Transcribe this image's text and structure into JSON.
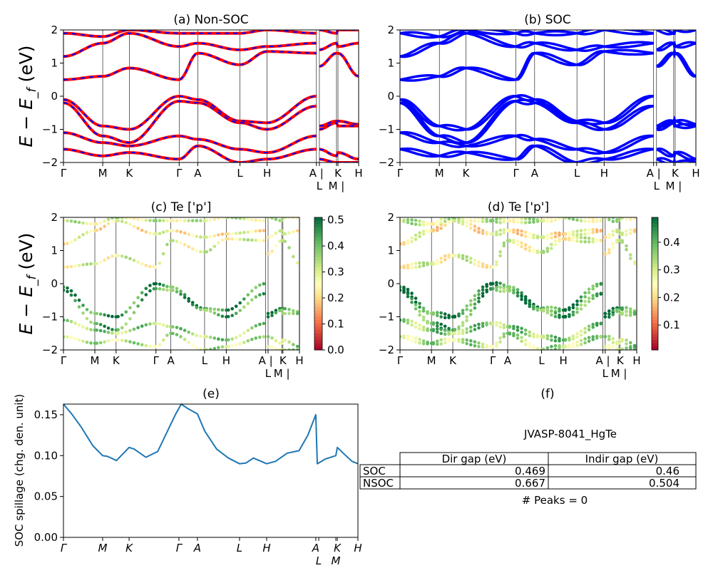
{
  "chart_data": [
    {
      "panel": "a",
      "type": "line",
      "title": "(a) Non-SOC",
      "ylabel": "E − E_f (eV)",
      "ylim": [
        -2,
        2
      ],
      "yticks": [
        "−2",
        "−1",
        "0",
        "1",
        "2"
      ],
      "kpath_labels": [
        "Γ",
        "M",
        "K",
        "Γ",
        "A",
        "L",
        "H",
        "A |",
        "L",
        "M |",
        "K",
        "H"
      ],
      "series_colors": {
        "line": "#ff0000",
        "dash": "#0000ff"
      },
      "bands_at_kpoints": [
        [
          -0.1,
          -0.9,
          -1.0,
          0.0,
          -0.1,
          -0.75,
          -0.8,
          0.0,
          -0.9,
          -0.75,
          -0.75,
          -0.85
        ],
        [
          -0.2,
          -1.2,
          -1.4,
          -0.15,
          -0.2,
          -0.8,
          -1.0,
          -0.3,
          -1.0,
          -0.8,
          -0.9,
          -0.9
        ],
        [
          -1.1,
          -1.4,
          -1.5,
          -1.2,
          -1.3,
          -1.6,
          -1.7,
          -1.2,
          -1.6,
          -1.8,
          -1.7,
          -1.9
        ],
        [
          -1.6,
          -1.8,
          -1.7,
          -1.9,
          -1.5,
          -2.0,
          -1.9,
          -1.6,
          -1.9,
          -2.0,
          -2.0,
          -2.0
        ],
        [
          0.5,
          0.6,
          0.85,
          0.5,
          1.3,
          0.95,
          1.35,
          1.3,
          0.9,
          1.3,
          1.3,
          0.6
        ],
        [
          1.2,
          1.6,
          1.9,
          1.5,
          1.6,
          1.4,
          1.5,
          1.6,
          1.4,
          1.6,
          1.5,
          1.6
        ],
        [
          1.9,
          1.8,
          2.0,
          1.9,
          1.9,
          1.9,
          2.0,
          1.9,
          2.0,
          1.9,
          2.0,
          2.0
        ]
      ]
    },
    {
      "panel": "b",
      "type": "line",
      "title": "(b) SOC",
      "ylim": [
        -2,
        2
      ],
      "yticks": [
        "−2",
        "−1",
        "0",
        "1",
        "2"
      ],
      "kpath_labels": [
        "Γ",
        "M",
        "K",
        "Γ",
        "A",
        "L",
        "H",
        "A |",
        "L",
        "M |",
        "K",
        "H"
      ],
      "series_colors": {
        "line": "#0000ff"
      }
    },
    {
      "panel": "c",
      "type": "scatter",
      "title": "(c)  Te ['p']",
      "ylabel": "E − E_f (eV)",
      "ylim": [
        -2,
        2
      ],
      "yticks": [
        "−2",
        "−1",
        "0",
        "1",
        "2"
      ],
      "kpath_labels": [
        "Γ",
        "M",
        "K",
        "Γ",
        "A",
        "L",
        "H",
        "A |",
        "L",
        "M |",
        "K",
        "H"
      ],
      "colormap": "RdYlGn",
      "colorbar": {
        "range": [
          0.0,
          0.51
        ],
        "ticks": [
          "0.0",
          "0.1",
          "0.2",
          "0.3",
          "0.4",
          "0.5"
        ],
        "values": [
          0,
          0.1,
          0.2,
          0.3,
          0.4,
          0.5
        ]
      },
      "band_weights": [
        0.45,
        0.42,
        0.36,
        0.33,
        0.28,
        0.25,
        0.3
      ]
    },
    {
      "panel": "d",
      "type": "scatter",
      "title": "(d) Te ['p']",
      "ylim": [
        -2,
        2
      ],
      "yticks": [
        "−2",
        "−1",
        "0",
        "1",
        "2"
      ],
      "kpath_labels": [
        "Γ",
        "M",
        "K",
        "Γ",
        "A",
        "L",
        "H",
        "A |",
        "L",
        "M |",
        "K",
        "H"
      ],
      "colormap": "RdYlGn",
      "colorbar": {
        "range": [
          0.01,
          0.49
        ],
        "ticks": [
          "0.1",
          "0.2",
          "0.3",
          "0.4"
        ],
        "values": [
          0.1,
          0.2,
          0.3,
          0.4
        ]
      },
      "band_weights": [
        0.44,
        0.41,
        0.36,
        0.33,
        0.27,
        0.24,
        0.3
      ]
    },
    {
      "panel": "e",
      "type": "line",
      "title": "(e)",
      "ylabel": "SOC spillage (chg. den. unit)",
      "ylim": [
        0,
        0.163
      ],
      "yticks": [
        "0.00",
        "0.05",
        "0.10",
        "0.15"
      ],
      "ytick_values": [
        0,
        0.05,
        0.1,
        0.15
      ],
      "kpath_labels": [
        "Γ",
        "M",
        "K",
        "Γ",
        "A",
        "L",
        "H",
        "A",
        "L",
        "M",
        "K",
        "H"
      ],
      "color": "#1f77b4",
      "x": [
        0,
        0.03,
        0.06,
        0.1,
        0.133,
        0.15,
        0.18,
        0.223,
        0.24,
        0.28,
        0.32,
        0.36,
        0.38,
        0.4,
        0.42,
        0.455,
        0.48,
        0.52,
        0.56,
        0.598,
        0.62,
        0.645,
        0.69,
        0.72,
        0.76,
        0.8,
        0.83,
        0.857,
        0.862,
        0.89,
        0.925,
        0.93,
        0.95,
        0.98,
        1.0
      ],
      "y": [
        0.163,
        0.15,
        0.135,
        0.112,
        0.1,
        0.099,
        0.094,
        0.11,
        0.108,
        0.098,
        0.105,
        0.135,
        0.15,
        0.163,
        0.158,
        0.151,
        0.13,
        0.108,
        0.097,
        0.09,
        0.091,
        0.097,
        0.09,
        0.093,
        0.103,
        0.106,
        0.125,
        0.15,
        0.09,
        0.096,
        0.1,
        0.11,
        0.103,
        0.093,
        0.09
      ]
    },
    {
      "panel": "f",
      "type": "table",
      "title": "(f)",
      "subtitle": "JVASP-8041_HgTe",
      "columns": [
        "Dir gap (eV)",
        "Indir gap (eV)"
      ],
      "rows": [
        {
          "label": "SOC",
          "values": [
            "0.469",
            "0.46"
          ]
        },
        {
          "label": "NSOC",
          "values": [
            "0.667",
            "0.504"
          ]
        }
      ],
      "footer": "# Peaks = 0"
    }
  ],
  "kpath_fractions": [
    0,
    0.133,
    0.223,
    0.392,
    0.455,
    0.598,
    0.69,
    0.857,
    0.867,
    0.925,
    0.93,
    1.0
  ]
}
